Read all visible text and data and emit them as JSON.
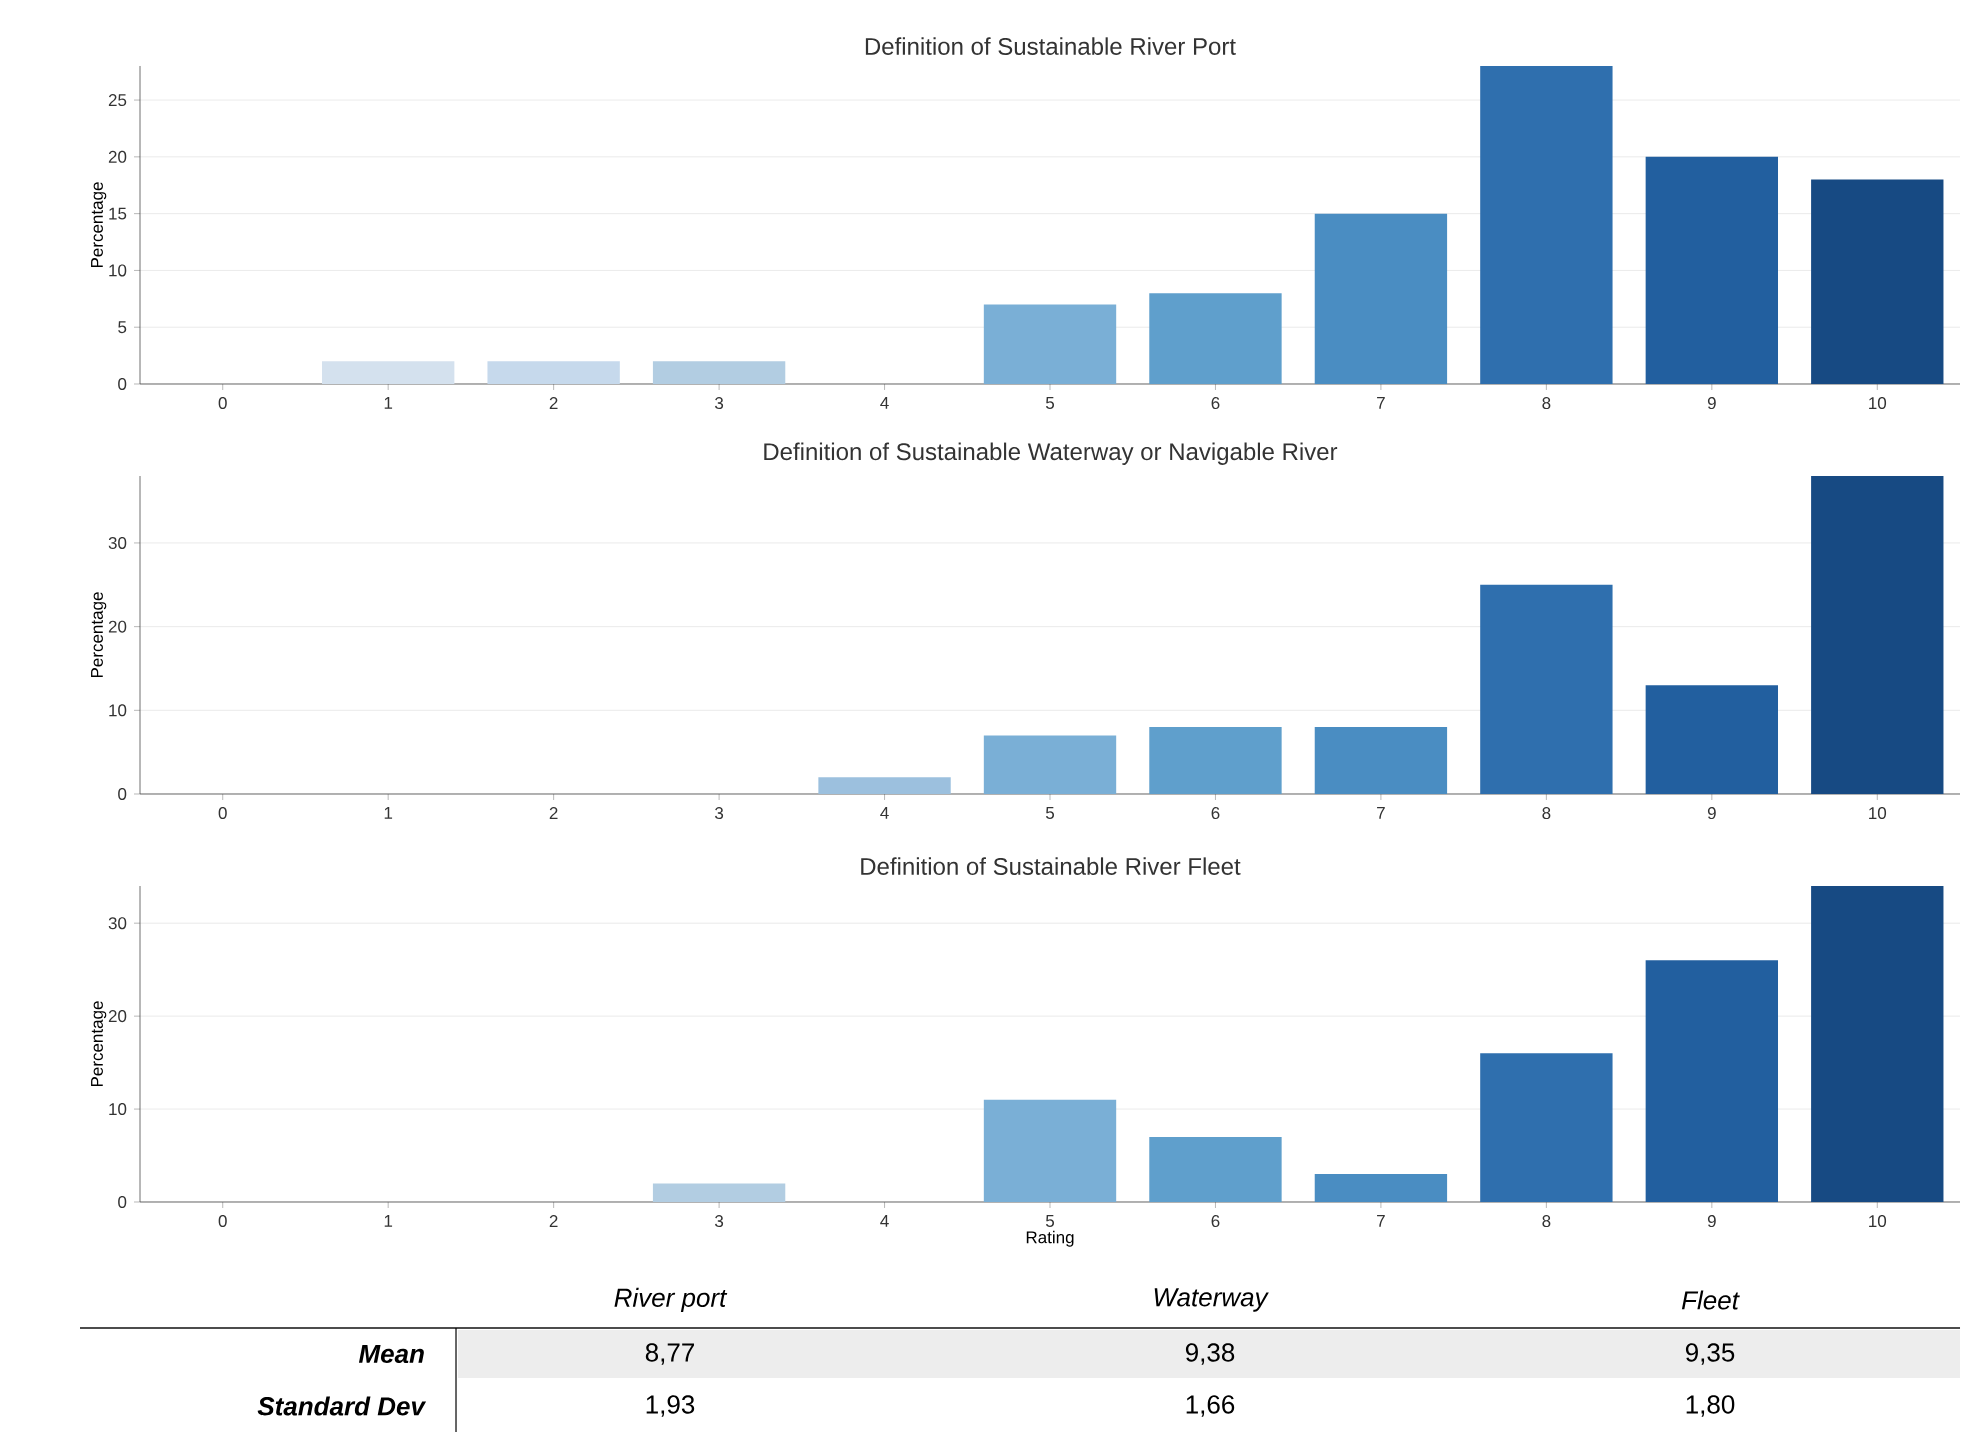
{
  "chart_data": [
    {
      "type": "bar",
      "title": "Definition of Sustainable River Port",
      "ylabel": "Percentage",
      "categories": [
        "0",
        "1",
        "2",
        "3",
        "4",
        "5",
        "6",
        "7",
        "8",
        "9",
        "10"
      ],
      "values": [
        0,
        2,
        2,
        2,
        0,
        7,
        8,
        15,
        28,
        20,
        18
      ],
      "colors": [
        "#e3ecf6",
        "#d4e1ee",
        "#c6d9ec",
        "#b2cde2",
        "#9cc0de",
        "#7aafd6",
        "#5f9fcc",
        "#4a8dc2",
        "#2f6fae",
        "#225f9f",
        "#174a83"
      ],
      "ylim": [
        0,
        28
      ],
      "yticks": [
        0,
        5,
        10,
        15,
        20,
        25
      ],
      "grid": "y"
    },
    {
      "type": "bar",
      "title": "Definition of Sustainable Waterway or Navigable River",
      "ylabel": "Percentage",
      "categories": [
        "0",
        "1",
        "2",
        "3",
        "4",
        "5",
        "6",
        "7",
        "8",
        "9",
        "10"
      ],
      "values": [
        0,
        0,
        0,
        0,
        2,
        7,
        8,
        8,
        25,
        13,
        38
      ],
      "colors": [
        "#e3ecf6",
        "#d4e1ee",
        "#c6d9ec",
        "#b2cde2",
        "#9cc0de",
        "#7aafd6",
        "#5f9fcc",
        "#4a8dc2",
        "#2f6fae",
        "#225f9f",
        "#174a83"
      ],
      "ylim": [
        0,
        38
      ],
      "yticks": [
        0,
        10,
        20,
        30
      ],
      "grid": "y"
    },
    {
      "type": "bar",
      "title": "Definition of Sustainable River Fleet",
      "ylabel": "Percentage",
      "xlabel": "Rating",
      "categories": [
        "0",
        "1",
        "2",
        "3",
        "4",
        "5",
        "6",
        "7",
        "8",
        "9",
        "10"
      ],
      "values": [
        0,
        0,
        0,
        2,
        0,
        11,
        7,
        3,
        16,
        26,
        34
      ],
      "colors": [
        "#e3ecf6",
        "#d4e1ee",
        "#c6d9ec",
        "#b2cde2",
        "#9cc0de",
        "#7aafd6",
        "#5f9fcc",
        "#4a8dc2",
        "#2f6fae",
        "#225f9f",
        "#174a83"
      ],
      "ylim": [
        0,
        34
      ],
      "yticks": [
        0,
        10,
        20,
        30
      ],
      "grid": "y"
    },
    {
      "type": "other",
      "categories": [
        "River port",
        "Waterway",
        "Fleet"
      ],
      "annotations": [
        "Mean",
        "8,77",
        "9,38",
        "9,35",
        "Standard Dev",
        "1,93",
        "1,66",
        "1,80"
      ]
    }
  ]
}
